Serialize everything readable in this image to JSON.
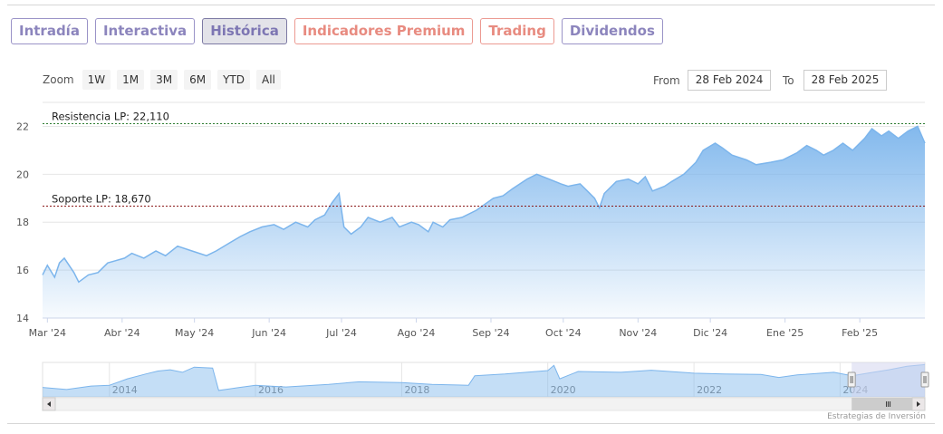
{
  "tabs": [
    {
      "label": "Intradía",
      "tone": "purple",
      "active": false
    },
    {
      "label": "Interactiva",
      "tone": "purple",
      "active": false
    },
    {
      "label": "Histórica",
      "tone": "purple",
      "active": true
    },
    {
      "label": "Indicadores Premium",
      "tone": "red",
      "active": false
    },
    {
      "label": "Trading",
      "tone": "red",
      "active": false
    },
    {
      "label": "Dividendos",
      "tone": "purple",
      "active": false
    }
  ],
  "zoom": {
    "label": "Zoom",
    "buttons": [
      "1W",
      "1M",
      "3M",
      "6M",
      "YTD",
      "All"
    ]
  },
  "range": {
    "from_label": "From",
    "from_value": "28 Feb 2024",
    "to_label": "To",
    "to_value": "28 Feb 2025"
  },
  "credits": "Estrategias de Inversión",
  "colors": {
    "series": "#7cb5ec",
    "fill_top": "#7cb5ec",
    "resistance": "#2e7d32",
    "support": "#8b1a1a",
    "navigator_mask": "#d4d6ee"
  },
  "chart_data": {
    "type": "area",
    "x_axis_type": "datetime",
    "ylim": [
      14,
      23
    ],
    "y_ticks": [
      14,
      16,
      18,
      20,
      22
    ],
    "x_tick_labels": [
      {
        "date": "2024-03-01",
        "label": "Mar '24"
      },
      {
        "date": "2024-04-01",
        "label": "Abr '24"
      },
      {
        "date": "2024-05-01",
        "label": "May '24"
      },
      {
        "date": "2024-06-01",
        "label": "Jun '24"
      },
      {
        "date": "2024-07-01",
        "label": "Jul '24"
      },
      {
        "date": "2024-08-01",
        "label": "Ago '24"
      },
      {
        "date": "2024-09-01",
        "label": "Sep '24"
      },
      {
        "date": "2024-10-01",
        "label": "Oct '24"
      },
      {
        "date": "2024-11-01",
        "label": "Nov '24"
      },
      {
        "date": "2024-12-01",
        "label": "Dic '24"
      },
      {
        "date": "2025-01-01",
        "label": "Ene '25"
      },
      {
        "date": "2025-02-01",
        "label": "Feb '25"
      }
    ],
    "x_range": [
      "2024-02-28",
      "2025-02-28"
    ],
    "grid": true,
    "series": [
      {
        "points": [
          [
            "2024-02-28",
            15.8
          ],
          [
            "2024-03-01",
            16.2
          ],
          [
            "2024-03-04",
            15.7
          ],
          [
            "2024-03-06",
            16.3
          ],
          [
            "2024-03-08",
            16.5
          ],
          [
            "2024-03-12",
            15.9
          ],
          [
            "2024-03-14",
            15.5
          ],
          [
            "2024-03-18",
            15.8
          ],
          [
            "2024-03-22",
            15.9
          ],
          [
            "2024-03-26",
            16.3
          ],
          [
            "2024-04-02",
            16.5
          ],
          [
            "2024-04-05",
            16.7
          ],
          [
            "2024-04-10",
            16.5
          ],
          [
            "2024-04-15",
            16.8
          ],
          [
            "2024-04-19",
            16.6
          ],
          [
            "2024-04-24",
            17.0
          ],
          [
            "2024-04-30",
            16.8
          ],
          [
            "2024-05-06",
            16.6
          ],
          [
            "2024-05-10",
            16.8
          ],
          [
            "2024-05-15",
            17.1
          ],
          [
            "2024-05-20",
            17.4
          ],
          [
            "2024-05-24",
            17.6
          ],
          [
            "2024-05-29",
            17.8
          ],
          [
            "2024-06-03",
            17.9
          ],
          [
            "2024-06-07",
            17.7
          ],
          [
            "2024-06-12",
            18.0
          ],
          [
            "2024-06-17",
            17.8
          ],
          [
            "2024-06-20",
            18.1
          ],
          [
            "2024-06-24",
            18.3
          ],
          [
            "2024-06-27",
            18.8
          ],
          [
            "2024-06-30",
            19.2
          ],
          [
            "2024-07-02",
            17.8
          ],
          [
            "2024-07-05",
            17.5
          ],
          [
            "2024-07-09",
            17.8
          ],
          [
            "2024-07-12",
            18.2
          ],
          [
            "2024-07-17",
            18.0
          ],
          [
            "2024-07-22",
            18.2
          ],
          [
            "2024-07-25",
            17.8
          ],
          [
            "2024-07-30",
            18.0
          ],
          [
            "2024-08-02",
            17.9
          ],
          [
            "2024-08-06",
            17.6
          ],
          [
            "2024-08-08",
            18.0
          ],
          [
            "2024-08-12",
            17.8
          ],
          [
            "2024-08-15",
            18.1
          ],
          [
            "2024-08-20",
            18.2
          ],
          [
            "2024-08-26",
            18.5
          ],
          [
            "2024-09-02",
            19.0
          ],
          [
            "2024-09-06",
            19.1
          ],
          [
            "2024-09-10",
            19.4
          ],
          [
            "2024-09-16",
            19.8
          ],
          [
            "2024-09-20",
            20.0
          ],
          [
            "2024-09-25",
            19.8
          ],
          [
            "2024-09-30",
            19.6
          ],
          [
            "2024-10-03",
            19.5
          ],
          [
            "2024-10-08",
            19.6
          ],
          [
            "2024-10-11",
            19.3
          ],
          [
            "2024-10-14",
            19.0
          ],
          [
            "2024-10-16",
            18.6
          ],
          [
            "2024-10-18",
            19.2
          ],
          [
            "2024-10-23",
            19.7
          ],
          [
            "2024-10-28",
            19.8
          ],
          [
            "2024-11-01",
            19.6
          ],
          [
            "2024-11-04",
            19.9
          ],
          [
            "2024-11-07",
            19.3
          ],
          [
            "2024-11-12",
            19.5
          ],
          [
            "2024-11-15",
            19.7
          ],
          [
            "2024-11-20",
            20.0
          ],
          [
            "2024-11-25",
            20.5
          ],
          [
            "2024-11-28",
            21.0
          ],
          [
            "2024-12-03",
            21.3
          ],
          [
            "2024-12-06",
            21.1
          ],
          [
            "2024-12-10",
            20.8
          ],
          [
            "2024-12-16",
            20.6
          ],
          [
            "2024-12-20",
            20.4
          ],
          [
            "2024-12-26",
            20.5
          ],
          [
            "2024-12-31",
            20.6
          ],
          [
            "2025-01-06",
            20.9
          ],
          [
            "2025-01-10",
            21.2
          ],
          [
            "2025-01-14",
            21.0
          ],
          [
            "2025-01-17",
            20.8
          ],
          [
            "2025-01-21",
            21.0
          ],
          [
            "2025-01-25",
            21.3
          ],
          [
            "2025-01-29",
            21.0
          ],
          [
            "2025-02-03",
            21.5
          ],
          [
            "2025-02-06",
            21.9
          ],
          [
            "2025-02-10",
            21.6
          ],
          [
            "2025-02-13",
            21.8
          ],
          [
            "2025-02-17",
            21.5
          ],
          [
            "2025-02-21",
            21.8
          ],
          [
            "2025-02-25",
            22.0
          ],
          [
            "2025-02-28",
            21.3
          ]
        ]
      }
    ],
    "plot_lines": [
      {
        "label": "Resistencia LP: 22,110",
        "value": 22.11
      },
      {
        "label": "Soporte LP: 18,670",
        "value": 18.67
      }
    ],
    "navigator": {
      "year_labels": [
        "2014",
        "2016",
        "2018",
        "2020",
        "2022",
        "2024"
      ],
      "x_range": [
        "2013-02-01",
        "2025-02-28"
      ],
      "selected_range": [
        "2024-02-28",
        "2025-02-28"
      ],
      "points": [
        [
          "2013-02-01",
          10.5
        ],
        [
          "2013-06-01",
          10.0
        ],
        [
          "2013-10-01",
          10.8
        ],
        [
          "2014-01-01",
          11.0
        ],
        [
          "2014-04-01",
          12.5
        ],
        [
          "2014-07-01",
          13.6
        ],
        [
          "2014-09-01",
          14.3
        ],
        [
          "2014-11-01",
          14.6
        ],
        [
          "2015-01-01",
          14.0
        ],
        [
          "2015-03-01",
          15.2
        ],
        [
          "2015-06-01",
          15.0
        ],
        [
          "2015-07-01",
          9.8
        ],
        [
          "2015-10-01",
          10.4
        ],
        [
          "2016-01-01",
          11.0
        ],
        [
          "2016-06-01",
          10.6
        ],
        [
          "2017-01-01",
          11.2
        ],
        [
          "2017-06-01",
          11.8
        ],
        [
          "2018-01-01",
          11.6
        ],
        [
          "2018-06-01",
          11.2
        ],
        [
          "2018-12-01",
          11.0
        ],
        [
          "2019-01-01",
          13.2
        ],
        [
          "2019-06-01",
          13.6
        ],
        [
          "2020-01-01",
          14.4
        ],
        [
          "2020-02-01",
          15.6
        ],
        [
          "2020-03-01",
          12.5
        ],
        [
          "2020-06-01",
          14.2
        ],
        [
          "2021-01-01",
          14.0
        ],
        [
          "2021-06-01",
          14.5
        ],
        [
          "2022-01-01",
          13.8
        ],
        [
          "2022-06-01",
          13.6
        ],
        [
          "2022-12-01",
          13.5
        ],
        [
          "2023-03-01",
          12.8
        ],
        [
          "2023-06-01",
          13.4
        ],
        [
          "2023-12-01",
          14.0
        ],
        [
          "2024-03-01",
          13.2
        ],
        [
          "2024-06-01",
          13.9
        ],
        [
          "2024-09-01",
          14.6
        ],
        [
          "2024-12-01",
          15.4
        ],
        [
          "2025-02-28",
          15.8
        ]
      ]
    }
  }
}
